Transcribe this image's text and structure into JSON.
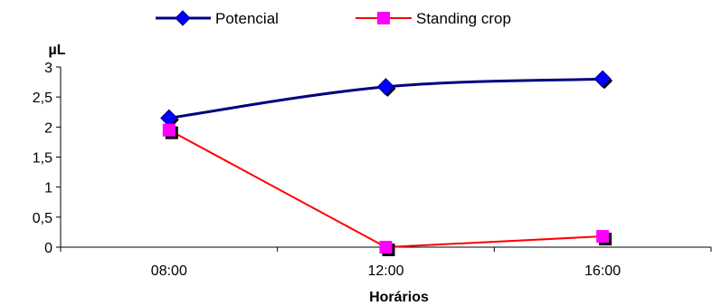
{
  "chart_data": {
    "type": "line",
    "title": "",
    "xlabel": "Horários",
    "ylabel": "µL",
    "categories": [
      "08:00",
      "12:00",
      "16:00"
    ],
    "ylim": [
      0,
      3
    ],
    "yticks": [
      "0",
      "0,5",
      "1",
      "1,5",
      "2",
      "2,5",
      "3"
    ],
    "yticks_values": [
      0,
      0.5,
      1,
      1.5,
      2,
      2.5,
      3
    ],
    "legend_position": "top-center",
    "grid": false,
    "series": [
      {
        "name": "Potencial",
        "values": [
          2.15,
          2.67,
          2.8
        ],
        "color": "#000080",
        "marker": "diamond",
        "marker_color": "#0000ff"
      },
      {
        "name": "Standing crop",
        "values": [
          1.95,
          0.0,
          0.18
        ],
        "color": "#ff0000",
        "marker": "square",
        "marker_color": "#ff00ff"
      }
    ]
  }
}
